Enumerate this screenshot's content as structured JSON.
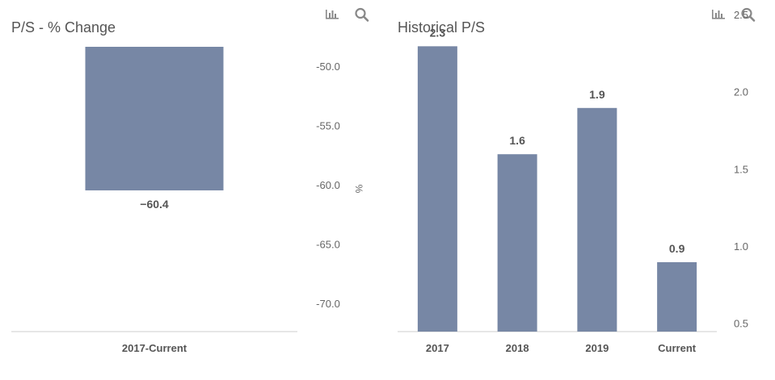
{
  "toolbar": {
    "left": {
      "chart_icon": "bar-chart-icon",
      "search_icon": "search-icon"
    },
    "right": {
      "chart_icon": "bar-chart-icon",
      "search_icon": "search-icon"
    }
  },
  "colors": {
    "bar": "#7787a5",
    "axis_text": "#666666",
    "data_label": "#555555",
    "baseline": "#cccccc"
  },
  "chart_data": [
    {
      "type": "bar",
      "title": "P/S - % Change",
      "categories": [
        "2017-Current"
      ],
      "values": [
        -60.4
      ],
      "value_labels": [
        "-60.4"
      ],
      "ylabel": "%",
      "yticks": [
        "-50.0",
        "-55.0",
        "-60.0",
        "-65.0",
        "-70.0"
      ],
      "ylim": [
        -72.3,
        -48.3
      ],
      "yaxis_side": "right",
      "grid": false
    },
    {
      "type": "bar",
      "title": "Historical P/S",
      "categories": [
        "2017",
        "2018",
        "2019",
        "Current"
      ],
      "values": [
        2.3,
        1.6,
        1.9,
        0.9
      ],
      "value_labels": [
        "2.3",
        "1.6",
        "1.9",
        "0.9"
      ],
      "ylabel": "",
      "yticks": [
        "2.5",
        "2.0",
        "1.5",
        "1.0",
        "0.5"
      ],
      "ylim": [
        0.45,
        2.6
      ],
      "yaxis_side": "right",
      "grid": false
    }
  ]
}
